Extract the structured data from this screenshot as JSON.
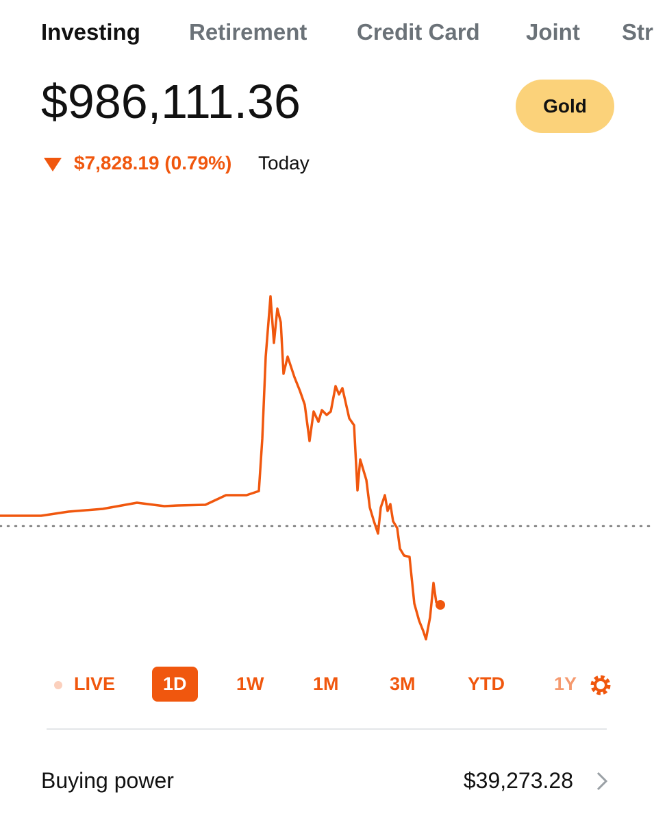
{
  "tabs": [
    "Investing",
    "Retirement",
    "Credit Card",
    "Joint",
    "Str"
  ],
  "header": {
    "balance": "$986,111.36",
    "badge": "Gold",
    "change": "$7,828.19 (0.79%)",
    "period": "Today"
  },
  "ranges": [
    "LIVE",
    "1D",
    "1W",
    "1M",
    "3M",
    "YTD",
    "1Y"
  ],
  "buying_power": {
    "label": "Buying power",
    "value": "$39,273.28"
  }
}
